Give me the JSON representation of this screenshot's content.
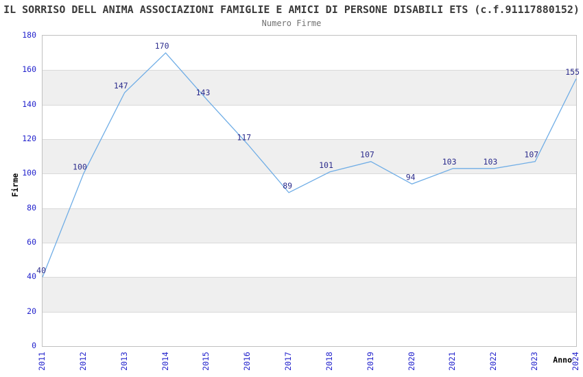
{
  "chart_data": {
    "type": "line",
    "title": "IL SORRISO DELL ANIMA ASSOCIAZIONI FAMIGLIE E AMICI DI PERSONE DISABILI ETS (c.f.91117880152)",
    "subtitle": "Numero Firme",
    "xlabel": "Anno",
    "ylabel": "Firme",
    "categories": [
      "2011",
      "2012",
      "2013",
      "2014",
      "2015",
      "2016",
      "2017",
      "2018",
      "2019",
      "2020",
      "2021",
      "2022",
      "2023",
      "2024"
    ],
    "series": [
      {
        "name": "Numero Firme",
        "values": [
          40,
          100,
          147,
          170,
          143,
          117,
          89,
          101,
          107,
          94,
          103,
          103,
          107,
          155
        ]
      }
    ],
    "ylim": [
      0,
      180
    ],
    "yticks": [
      0,
      20,
      40,
      60,
      80,
      100,
      120,
      140,
      160,
      180
    ],
    "grid": "horizontal-lines-with-alternating-bands",
    "legend": "none",
    "data_labels_visible": true,
    "colors": {
      "line": "#6fade6",
      "data_label": "#2b2b8c",
      "tick_label": "#2222cc",
      "band": "#efefef",
      "grid_line": "#d9d9d9",
      "axis_border": "#c0c0c0",
      "title": "#3a3a3a",
      "subtitle": "#707070",
      "axis_title": "#000000"
    }
  }
}
